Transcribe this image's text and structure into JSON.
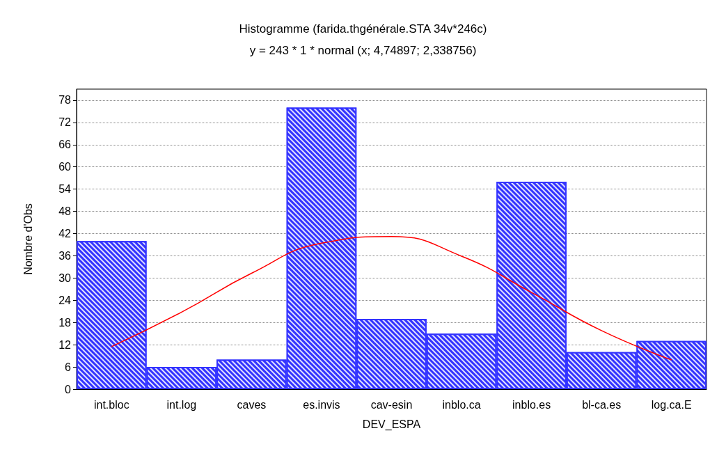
{
  "chart_data": {
    "type": "bar",
    "title": "Histogramme (farida.thgénérale.STA 34v*246c)",
    "subtitle": "y = 243 * 1 * normal (x; 4,74897; 2,338756)",
    "xlabel": "DEV_ESPA",
    "ylabel": "Nombre d'Obs",
    "categories": [
      "int.bloc",
      "int.log",
      "caves",
      "es.invis",
      "cav-esin",
      "inblo.ca",
      "inblo.es",
      "bl-ca.es",
      "log.ca.E"
    ],
    "series": [
      {
        "color": "#3333ff",
        "values": [
          40,
          6,
          8,
          76,
          19,
          15,
          56,
          10,
          13
        ]
      },
      {
        "type": "line",
        "color": "#ff0000",
        "marker": "none",
        "values": [
          11.5,
          20.8,
          31.3,
          39.4,
          41.2,
          35.9,
          26.1,
          15.8,
          7.9
        ]
      }
    ],
    "ylim": [
      0,
      81
    ],
    "yticks": [
      0,
      6,
      12,
      18,
      24,
      30,
      36,
      42,
      48,
      54,
      60,
      66,
      72,
      78
    ],
    "grid": "y"
  }
}
